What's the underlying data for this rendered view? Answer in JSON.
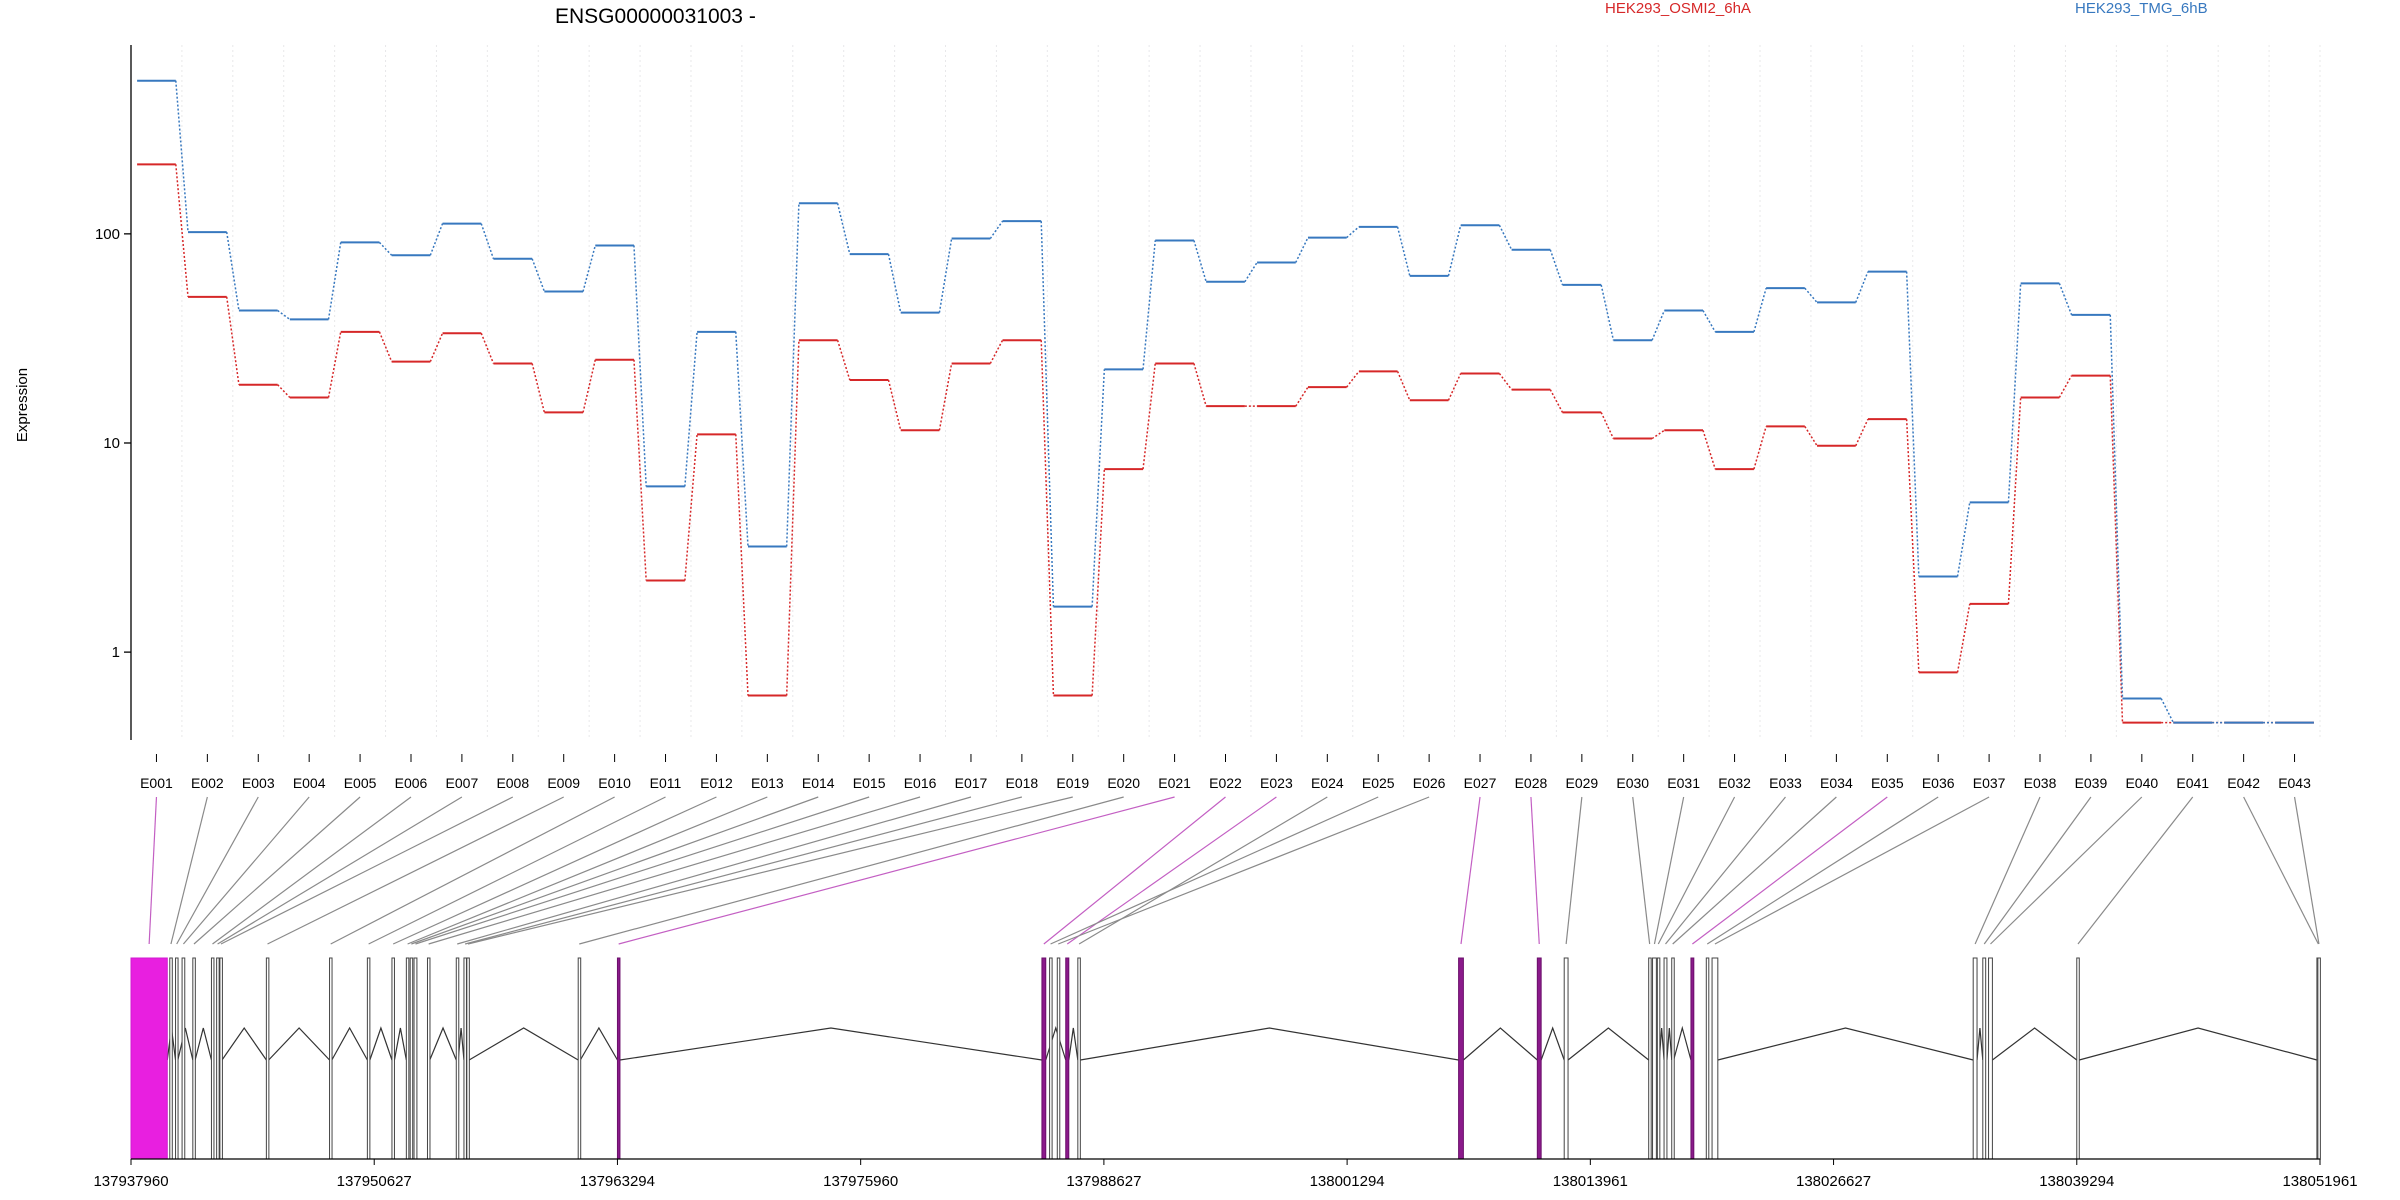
{
  "chart_data": {
    "type": "line",
    "title": "ENSG00000031003 -",
    "ylabel": "Expression",
    "xlabel": "",
    "y_scale": "log",
    "y_ticks": [
      1,
      10,
      100
    ],
    "y_tick_labels": [
      "1",
      "10",
      "100"
    ],
    "ylim": [
      0.38,
      800
    ],
    "legend_placement": "top",
    "colors": {
      "red": "#d62728",
      "blue": "#3778bf",
      "magenta": "#e81fe0",
      "purple": "#8b1a8b"
    },
    "exons": [
      "E001",
      "E002",
      "E003",
      "E004",
      "E005",
      "E006",
      "E007",
      "E008",
      "E009",
      "E010",
      "E011",
      "E012",
      "E013",
      "E014",
      "E015",
      "E016",
      "E017",
      "E018",
      "E019",
      "E020",
      "E021",
      "E022",
      "E023",
      "E024",
      "E025",
      "E026",
      "E027",
      "E028",
      "E029",
      "E030",
      "E031",
      "E032",
      "E033",
      "E034",
      "E035",
      "E036",
      "E037",
      "E038",
      "E039",
      "E040",
      "E041",
      "E042",
      "E043"
    ],
    "series": [
      {
        "name": "HEK293_OSMI2_6hA",
        "color": "#d62728",
        "values": [
          215,
          50,
          19,
          16.5,
          34,
          24.5,
          33.5,
          24,
          14,
          25,
          2.2,
          11,
          0.62,
          31,
          20,
          11.5,
          24,
          31,
          0.62,
          7.5,
          24,
          15,
          15,
          18.5,
          22,
          16,
          21.5,
          18,
          14,
          10.5,
          11.5,
          7.5,
          12,
          9.7,
          13,
          0.8,
          1.7,
          16.5,
          21,
          0.46,
          0.46,
          0.46,
          0.46
        ]
      },
      {
        "name": "HEK293_TMG_6hB",
        "color": "#3778bf",
        "values": [
          540,
          102,
          43,
          39,
          91,
          79,
          112,
          76,
          53,
          88,
          6.2,
          34,
          3.2,
          140,
          80,
          42,
          95,
          115,
          1.65,
          22.5,
          93,
          59,
          73,
          96,
          108,
          63,
          110,
          84,
          57,
          31,
          43,
          34,
          55,
          47,
          66,
          2.3,
          5.2,
          58,
          41,
          0.6,
          0.46,
          0.46,
          0.46
        ]
      }
    ],
    "genome_ticks": [
      "137937960",
      "137950627",
      "137963294",
      "137975960",
      "137988627",
      "138001294",
      "138013961",
      "138026627",
      "138039294",
      "138051961"
    ],
    "genome_range": [
      137937960,
      138051961
    ],
    "exon_starts": [
      137937960,
      137939980,
      137940280,
      137940620,
      137941180,
      137942150,
      137942420,
      137942590,
      137945010,
      137948300,
      137950270,
      137951550,
      137952300,
      137952500,
      137952700,
      137953400,
      137954900,
      137955300,
      137955450,
      137961250,
      137963294,
      137985400,
      137986640,
      137987270,
      137985800,
      137986200,
      138007100,
      138011200,
      138012600,
      138017000,
      138017200,
      138017450,
      138017800,
      138018200,
      138019200,
      138020000,
      138020300,
      138033900,
      138034400,
      138034700,
      138039294,
      138051800,
      138051850
    ],
    "exon_ends": [
      137939850,
      137940100,
      137940400,
      137940760,
      137941300,
      137942260,
      137942520,
      137942700,
      137945130,
      137948420,
      137950400,
      137951680,
      137952430,
      137952620,
      137952850,
      137953520,
      137955000,
      137955420,
      137955570,
      137961360,
      137963420,
      137985600,
      137986800,
      137987400,
      137985900,
      137986300,
      138007350,
      138011400,
      138012800,
      138017100,
      138017400,
      138017550,
      138017950,
      138018300,
      138019350,
      138020100,
      138020600,
      138034100,
      138034550,
      138034900,
      138039420,
      138051950,
      138051961
    ],
    "highlighted_exons": [
      0,
      20,
      21,
      22,
      26,
      27,
      34
    ],
    "introns": [
      [
        137939850,
        137940280
      ],
      [
        137940400,
        137941180
      ],
      [
        137941300,
        137942150
      ],
      [
        137942700,
        137945010
      ],
      [
        137945130,
        137948300
      ],
      [
        137948420,
        137950270
      ],
      [
        137950400,
        137951550
      ],
      [
        137951680,
        137952300
      ],
      [
        137953520,
        137954900
      ],
      [
        137955000,
        137955300
      ],
      [
        137955570,
        137961250
      ],
      [
        137961360,
        137963294
      ],
      [
        137963420,
        137985400
      ],
      [
        137985600,
        137986640
      ],
      [
        137986800,
        137987270
      ],
      [
        137987400,
        138007100
      ],
      [
        138007350,
        138011200
      ],
      [
        138011400,
        138012600
      ],
      [
        138012800,
        138017000
      ],
      [
        138017550,
        138017800
      ],
      [
        138017950,
        138018200
      ],
      [
        138018300,
        138019200
      ],
      [
        138020600,
        138033900
      ],
      [
        138034100,
        138034400
      ],
      [
        138034900,
        138039294
      ],
      [
        138039420,
        138051800
      ]
    ]
  }
}
